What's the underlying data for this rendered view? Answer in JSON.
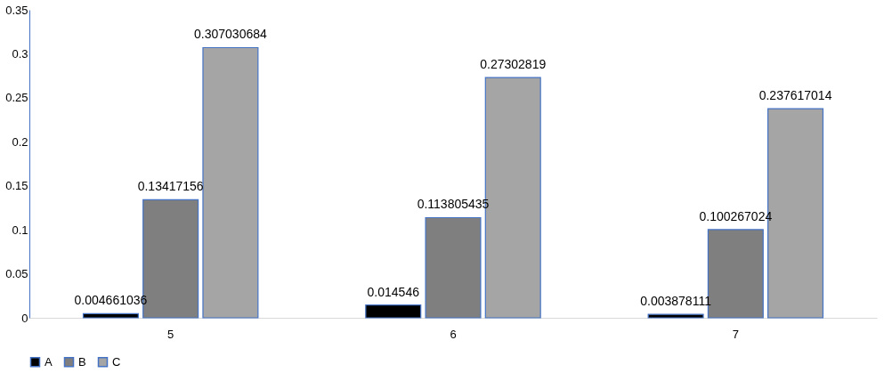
{
  "chart_data": {
    "type": "bar",
    "categories": [
      "5",
      "6",
      "7"
    ],
    "series": [
      {
        "name": "A",
        "color": "#000000",
        "values": [
          0.004661036,
          0.014546,
          0.003878111
        ]
      },
      {
        "name": "B",
        "color": "#7f7f7f",
        "values": [
          0.13417156,
          0.113805435,
          0.100267024
        ]
      },
      {
        "name": "C",
        "color": "#a5a5a5",
        "values": [
          0.307030684,
          0.27302819,
          0.237617014
        ]
      }
    ],
    "ylim": [
      0,
      0.35
    ],
    "yticks": [
      0,
      0.05,
      0.1,
      0.15,
      0.2,
      0.25,
      0.3,
      0.35
    ],
    "data_labels": true,
    "grid": false,
    "legend": "bottom"
  }
}
